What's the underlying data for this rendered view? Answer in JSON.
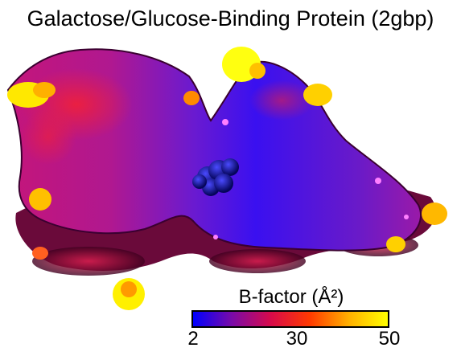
{
  "title": "Galactose/Glucose-Binding Protein (2gbp)",
  "colorbar": {
    "label": "B-factor (Å²)",
    "ticks": [
      "2",
      "30",
      "50"
    ],
    "colors": [
      "#0000ff",
      "#7a0aa8",
      "#d80a4a",
      "#ff3a00",
      "#ffb000",
      "#ffff00"
    ]
  }
}
